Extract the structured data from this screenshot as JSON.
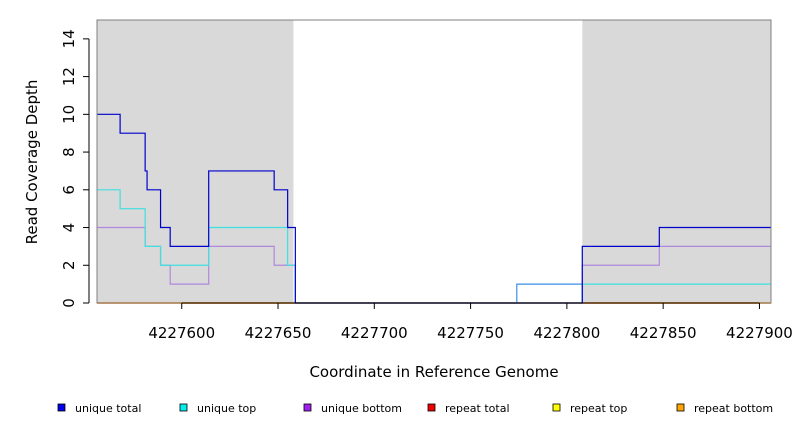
{
  "chart_data": {
    "type": "line",
    "line_style": "step",
    "title": "",
    "xlabel": "Coordinate in Reference Genome",
    "ylabel": "Read Coverage Depth",
    "xlim": [
      4227556,
      4227906
    ],
    "ylim": [
      0,
      15
    ],
    "x_ticks": [
      4227600,
      4227650,
      4227700,
      4227750,
      4227800,
      4227850,
      4227900
    ],
    "x_tick_labels": [
      "4227600",
      "4227650",
      "4227700",
      "4227750",
      "4227800",
      "4227850",
      "4227900"
    ],
    "y_ticks": [
      0,
      2,
      4,
      6,
      8,
      10,
      12,
      14
    ],
    "y_tick_labels": [
      "0",
      "2",
      "4",
      "6",
      "8",
      "10",
      "12",
      "14"
    ],
    "grid": false,
    "shaded_regions": [
      [
        4227556,
        4227658
      ],
      [
        4227808,
        4227906
      ]
    ],
    "shade_color": "#d9d9d9",
    "legend_position": "bottom",
    "series": [
      {
        "name": "unique total",
        "color": "#0000cc",
        "x": [
          4227556,
          4227568,
          4227581,
          4227582,
          4227589,
          4227594,
          4227614,
          4227648,
          4227655,
          4227659,
          4227808,
          4227848,
          4227906
        ],
        "y": [
          10,
          9,
          7,
          6,
          4,
          3,
          7,
          6,
          4,
          0,
          3,
          4,
          4
        ]
      },
      {
        "name": "unique top",
        "color": "#40e0e0",
        "x": [
          4227556,
          4227568,
          4227581,
          4227589,
          4227614,
          4227655,
          4227659,
          4227808,
          4227906
        ],
        "y": [
          6,
          5,
          3,
          2,
          4,
          2,
          0,
          1,
          1
        ]
      },
      {
        "name": "unique bottom",
        "color": "#b088dd",
        "x": [
          4227556,
          4227581,
          4227589,
          4227594,
          4227614,
          4227648,
          4227659,
          4227808,
          4227848,
          4227906
        ],
        "y": [
          4,
          3,
          2,
          1,
          3,
          2,
          0,
          2,
          3,
          3
        ]
      },
      {
        "name": "repeat total",
        "color": "#e00000",
        "x": [
          4227556,
          4227906
        ],
        "y": [
          0,
          0
        ]
      },
      {
        "name": "repeat top",
        "color": "#ffff00",
        "x": [
          4227556,
          4227906
        ],
        "y": [
          0,
          0
        ]
      },
      {
        "name": "repeat bottom",
        "color": "#ffa500",
        "x": [
          4227556,
          4227906
        ],
        "y": [
          0,
          0
        ]
      },
      {
        "name": "",
        "color": "#3a8fe8",
        "x": [
          4227659,
          4227774,
          4227808
        ],
        "y": [
          0,
          1,
          0
        ]
      }
    ]
  },
  "legend": [
    {
      "label": "unique total",
      "color": "#0000ee"
    },
    {
      "label": "unique top",
      "color": "#00eeee"
    },
    {
      "label": "unique bottom",
      "color": "#a020f0"
    },
    {
      "label": "repeat total",
      "color": "#ee0000"
    },
    {
      "label": "repeat top",
      "color": "#ffff00"
    },
    {
      "label": "repeat bottom",
      "color": "#ffa500"
    }
  ]
}
